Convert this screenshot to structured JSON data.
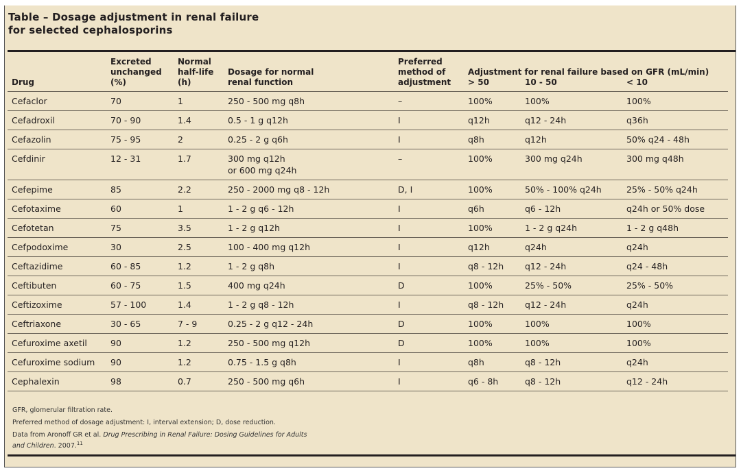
{
  "title": [
    "Table – Dosage adjustment in renal failure",
    "for selected cephalosporins"
  ],
  "headers": {
    "drug": "Drug",
    "excreted": [
      "Excreted",
      "unchanged",
      "(%)"
    ],
    "halflife": [
      "Normal",
      "half-life",
      "(h)"
    ],
    "dosage": [
      "Dosage for normal",
      "renal function"
    ],
    "method": [
      "Preferred",
      "method of",
      "adjustment"
    ],
    "gfr": "Adjustment for renal failure based on GFR (mL/min)",
    "gfr_sub": [
      "> 50",
      "10 - 50",
      "< 10"
    ]
  },
  "rows": [
    [
      "Cefaclor",
      "70",
      "1",
      "250 - 500 mg q8h",
      "–",
      "100%",
      "100%",
      "100%"
    ],
    [
      "Cefadroxil",
      "70 - 90",
      "1.4",
      "0.5 - 1 g q12h",
      "I",
      "q12h",
      "q12 - 24h",
      "q36h"
    ],
    [
      "Cefazolin",
      "75 - 95",
      "2",
      "0.25 - 2 g q6h",
      "I",
      "q8h",
      "q12h",
      "50% q24 - 48h"
    ],
    [
      "Cefdinir",
      "12 - 31",
      "1.7",
      "300 mg q12h\nor 600 mg q24h",
      "–",
      "100%",
      "300 mg q24h",
      "300 mg q48h"
    ],
    [
      "Cefepime",
      "85",
      "2.2",
      "250 - 2000 mg q8 - 12h",
      "D, I",
      "100%",
      "50% - 100% q24h",
      "25% - 50% q24h"
    ],
    [
      "Cefotaxime",
      "60",
      "1",
      "1 - 2 g q6 - 12h",
      "I",
      "q6h",
      "q6 - 12h",
      "q24h or 50% dose"
    ],
    [
      "Cefotetan",
      "75",
      "3.5",
      "1 - 2 g q12h",
      "I",
      "100%",
      "1 - 2 g q24h",
      "1 - 2 g q48h"
    ],
    [
      "Cefpodoxime",
      "30",
      "2.5",
      "100 - 400 mg q12h",
      "I",
      "q12h",
      "q24h",
      "q24h"
    ],
    [
      "Ceftazidime",
      "60 - 85",
      "1.2",
      "1 - 2 g q8h",
      "I",
      "q8 - 12h",
      "q12 - 24h",
      "q24 - 48h"
    ],
    [
      "Ceftibuten",
      "60 - 75",
      "1.5",
      "400 mg q24h",
      "D",
      "100%",
      "25% - 50%",
      "25% - 50%"
    ],
    [
      "Ceftizoxime",
      "57 - 100",
      "1.4",
      "1 - 2 g q8 - 12h",
      "I",
      "q8 - 12h",
      "q12 - 24h",
      "q24h"
    ],
    [
      "Ceftriaxone",
      "30 - 65",
      "7 - 9",
      "0.25 - 2 g q12 - 24h",
      "D",
      "100%",
      "100%",
      "100%"
    ],
    [
      "Cefuroxime axetil",
      "90",
      "1.2",
      "250 - 500 mg q12h",
      "D",
      "100%",
      "100%",
      "100%"
    ],
    [
      "Cefuroxime sodium",
      "90",
      "1.2",
      "0.75 - 1.5 g q8h",
      "I",
      "q8h",
      "q8 - 12h",
      "q24h"
    ],
    [
      "Cephalexin",
      "98",
      "0.7",
      "250 - 500 mg q6h",
      "I",
      "q6 - 8h",
      "q8 - 12h",
      "q12 - 24h"
    ]
  ],
  "footnotes": {
    "abbrev": "GFR, glomerular filtration rate.",
    "method": "Preferred method of dosage adjustment: I, interval extension; D, dose reduction.",
    "source_prefix": "Data from Aronoff GR et al. ",
    "source_title": "Drug Prescribing in Renal Failure: Dosing Guidelines for Adults and Children",
    "source_suffix": ". 2007.",
    "source_ref": "11"
  },
  "colors": {
    "background": "#efe4c9",
    "text": "#231f20"
  }
}
